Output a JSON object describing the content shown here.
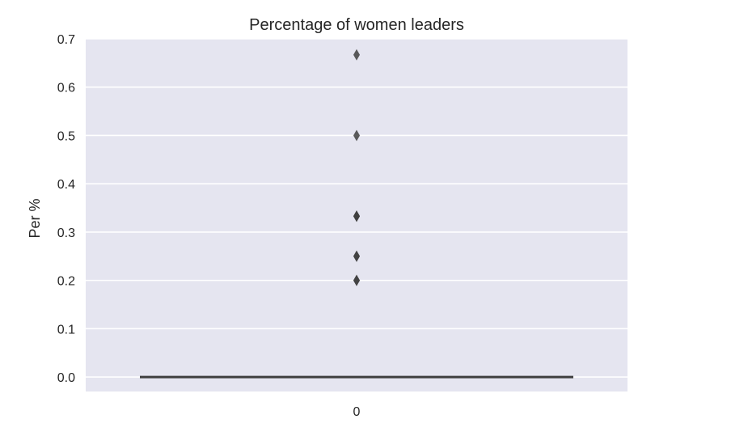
{
  "chart_data": {
    "type": "box",
    "title": "Percentage of women leaders",
    "xlabel": "",
    "ylabel": "Per %",
    "categories": [
      "0"
    ],
    "ylim": [
      -0.03,
      0.7
    ],
    "yticks": [
      0.0,
      0.1,
      0.2,
      0.3,
      0.4,
      0.5,
      0.6,
      0.7
    ],
    "ytick_labels": [
      "0.0",
      "0.1",
      "0.2",
      "0.3",
      "0.4",
      "0.5",
      "0.6",
      "0.7"
    ],
    "grid": true,
    "legend": "none",
    "series": [
      {
        "box": {
          "q1": 0.0,
          "median": 0.0,
          "q3": 0.0,
          "whisker_low": 0.0,
          "whisker_high": 0.0
        },
        "outliers": [
          0.2,
          0.2,
          0.25,
          0.25,
          0.333,
          0.333,
          0.333,
          0.5,
          0.667
        ]
      }
    ],
    "colors": {
      "plot_background": "#e5e5f0",
      "grid": "#ffffff",
      "box_line": "#3f3f3f",
      "outlier": "#3f3f3f",
      "text": "#262626"
    }
  }
}
